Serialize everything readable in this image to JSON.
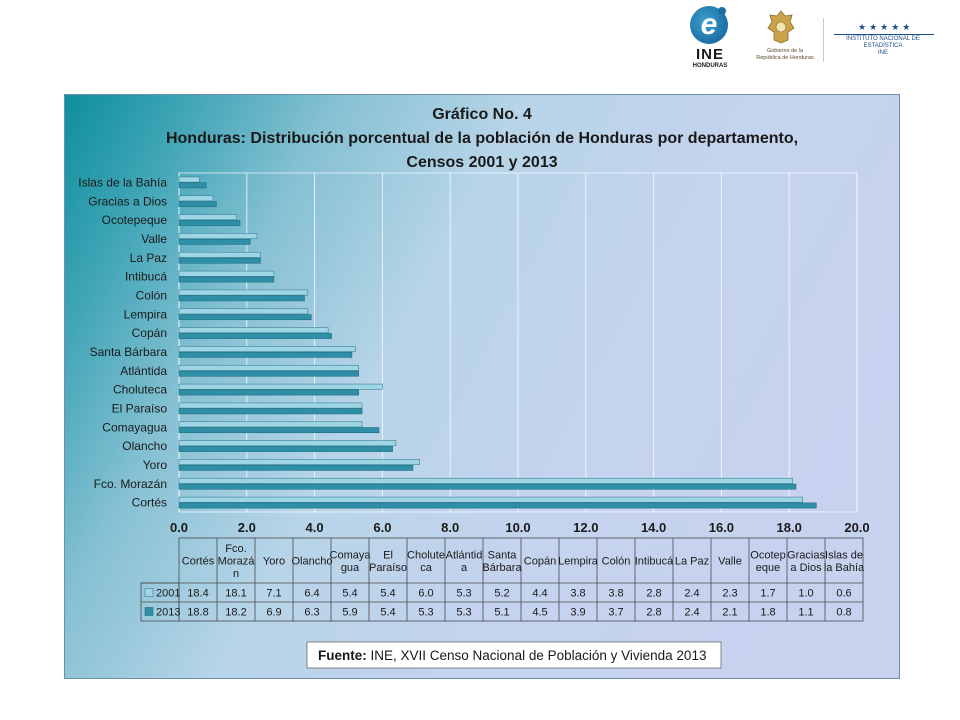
{
  "header": {
    "ine_name": "INE",
    "ine_sub": "HONDURAS",
    "gob_line1": "Gobierno de la",
    "gob_line2": "República de Honduras",
    "inst_stars": "★★★★★",
    "inst_line1": "INSTITUTO NACIONAL DE",
    "inst_line2": "ESTADÍSTICA",
    "inst_line3": "INE"
  },
  "colors": {
    "series_2001": "#9fd6e6",
    "series_2013": "#2e8fa6",
    "frame_border": "#6f8fae"
  },
  "chart_data": {
    "type": "bar",
    "orientation": "horizontal",
    "title_lines": [
      "Gráfico No. 4",
      "Honduras: Distribución porcentual de la población de Honduras por departamento,",
      "Censos 2001 y 2013"
    ],
    "categories": [
      "Cortés",
      "Fco. Morazán",
      "Yoro",
      "Olancho",
      "Comayagua",
      "El Paraíso",
      "Choluteca",
      "Atlántida",
      "Santa Bárbara",
      "Copán",
      "Lempira",
      "Colón",
      "Intibucá",
      "La Paz",
      "Valle",
      "Ocotepeque",
      "Gracias a Dios",
      "Islas de la Bahía"
    ],
    "table_headers": [
      [
        "Cortés"
      ],
      [
        "Fco.",
        "Morazá",
        "n"
      ],
      [
        "Yoro"
      ],
      [
        "Olancho"
      ],
      [
        "Comaya",
        "gua"
      ],
      [
        "El",
        "Paraíso"
      ],
      [
        "Cholute",
        "ca"
      ],
      [
        "Atlántid",
        "a"
      ],
      [
        "Santa",
        "Bárbara"
      ],
      [
        "Copán"
      ],
      [
        "Lempira"
      ],
      [
        "Colón"
      ],
      [
        "Intibucá"
      ],
      [
        "La Paz"
      ],
      [
        "Valle"
      ],
      [
        "Ocotep",
        "eque"
      ],
      [
        "Gracias",
        "a Dios"
      ],
      [
        "Islas de",
        "la Bahía"
      ]
    ],
    "series": [
      {
        "name": "2001",
        "values": [
          18.4,
          18.1,
          7.1,
          6.4,
          5.4,
          5.4,
          6.0,
          5.3,
          5.2,
          4.4,
          3.8,
          3.8,
          2.8,
          2.4,
          2.3,
          1.7,
          1.0,
          0.6
        ]
      },
      {
        "name": "2013",
        "values": [
          18.8,
          18.2,
          6.9,
          6.3,
          5.9,
          5.4,
          5.3,
          5.3,
          5.1,
          4.5,
          3.9,
          3.7,
          2.8,
          2.4,
          2.1,
          1.8,
          1.1,
          0.8
        ]
      }
    ],
    "xlim": [
      0,
      20
    ],
    "xticks": [
      "0.0",
      "2.0",
      "4.0",
      "6.0",
      "8.0",
      "10.0",
      "12.0",
      "14.0",
      "16.0",
      "18.0",
      "20.0"
    ],
    "grid": true,
    "legend": "data-table"
  },
  "source": {
    "label": "Fuente:",
    "text": " INE, XVII Censo Nacional de Población y Vivienda 2013"
  }
}
